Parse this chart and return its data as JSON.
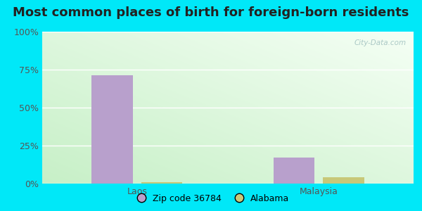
{
  "title": "Most common places of birth for foreign-born residents",
  "categories": [
    "Laos",
    "Malaysia"
  ],
  "series": [
    {
      "name": "Zip code 36784",
      "color": "#b8a0cc",
      "values": [
        0.714,
        0.171
      ]
    },
    {
      "name": "Alabama",
      "color": "#c8c878",
      "values": [
        0.01,
        0.04
      ]
    }
  ],
  "ylim": [
    0,
    1.0
  ],
  "yticks": [
    0,
    0.25,
    0.5,
    0.75,
    1.0
  ],
  "ytick_labels": [
    "0%",
    "25%",
    "50%",
    "75%",
    "100%"
  ],
  "bar_width": 0.1,
  "background_outer": "#00e8f8",
  "title_fontsize": 13,
  "axis_label_fontsize": 9,
  "legend_fontsize": 9,
  "watermark_text": "City-Data.com",
  "group_centers": [
    0.28,
    0.72
  ],
  "xlim": [
    0.05,
    0.95
  ]
}
